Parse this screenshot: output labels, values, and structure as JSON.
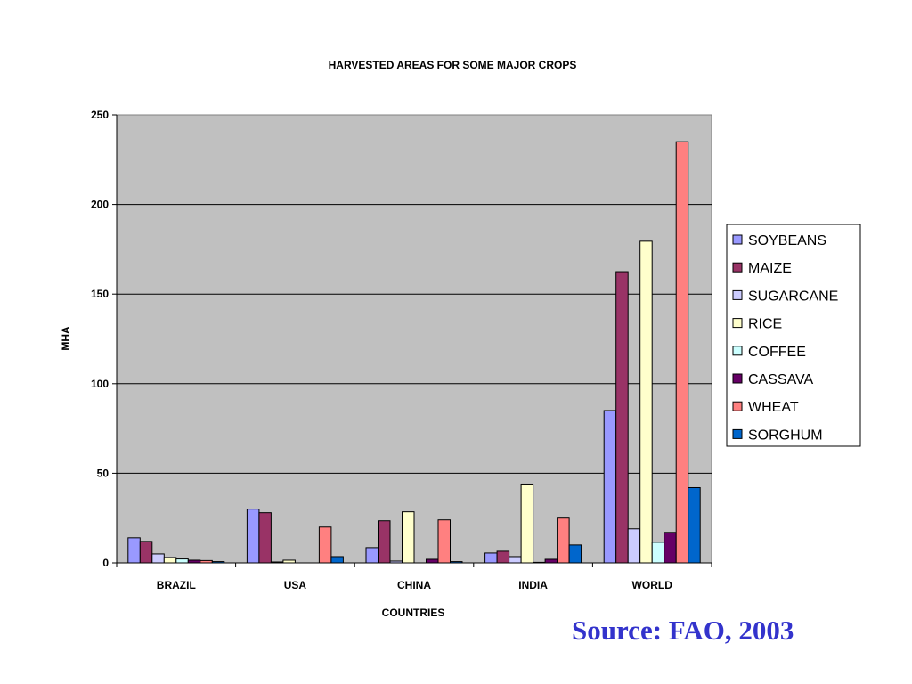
{
  "source_note": "Source: FAO, 2003",
  "chart_data": {
    "type": "bar",
    "title": "HARVESTED AREAS FOR SOME MAJOR CROPS",
    "xlabel": "COUNTRIES",
    "ylabel": "MHA",
    "ylim": [
      0,
      250
    ],
    "yticks": [
      0,
      50,
      100,
      150,
      200,
      250
    ],
    "grid": true,
    "legend_position": "right",
    "plot_background": "#c0c0c0",
    "categories": [
      "BRAZIL",
      "USA",
      "CHINA",
      "INDIA",
      "WORLD"
    ],
    "series": [
      {
        "name": "SOYBEANS",
        "color": "#9999ff",
        "values": [
          14,
          30,
          8.5,
          5.5,
          85
        ]
      },
      {
        "name": "MAIZE",
        "color": "#993366",
        "values": [
          12,
          28,
          23.5,
          6.5,
          162.5
        ]
      },
      {
        "name": "SUGARCANE",
        "color": "#ccccff",
        "values": [
          5,
          0.5,
          1,
          3.5,
          19
        ]
      },
      {
        "name": "RICE",
        "color": "#ffffcc",
        "values": [
          3,
          1.5,
          28.5,
          44,
          179.5
        ]
      },
      {
        "name": "COFFEE",
        "color": "#ccffff",
        "values": [
          2.2,
          0,
          0,
          0.3,
          11.5
        ]
      },
      {
        "name": "CASSAVA",
        "color": "#660066",
        "values": [
          1.5,
          0,
          2,
          2,
          17
        ]
      },
      {
        "name": "WHEAT",
        "color": "#ff8080",
        "values": [
          1.3,
          20,
          24,
          25,
          235
        ]
      },
      {
        "name": "SORGHUM",
        "color": "#0066cc",
        "values": [
          0.7,
          3.5,
          0.7,
          10,
          42
        ]
      }
    ]
  }
}
